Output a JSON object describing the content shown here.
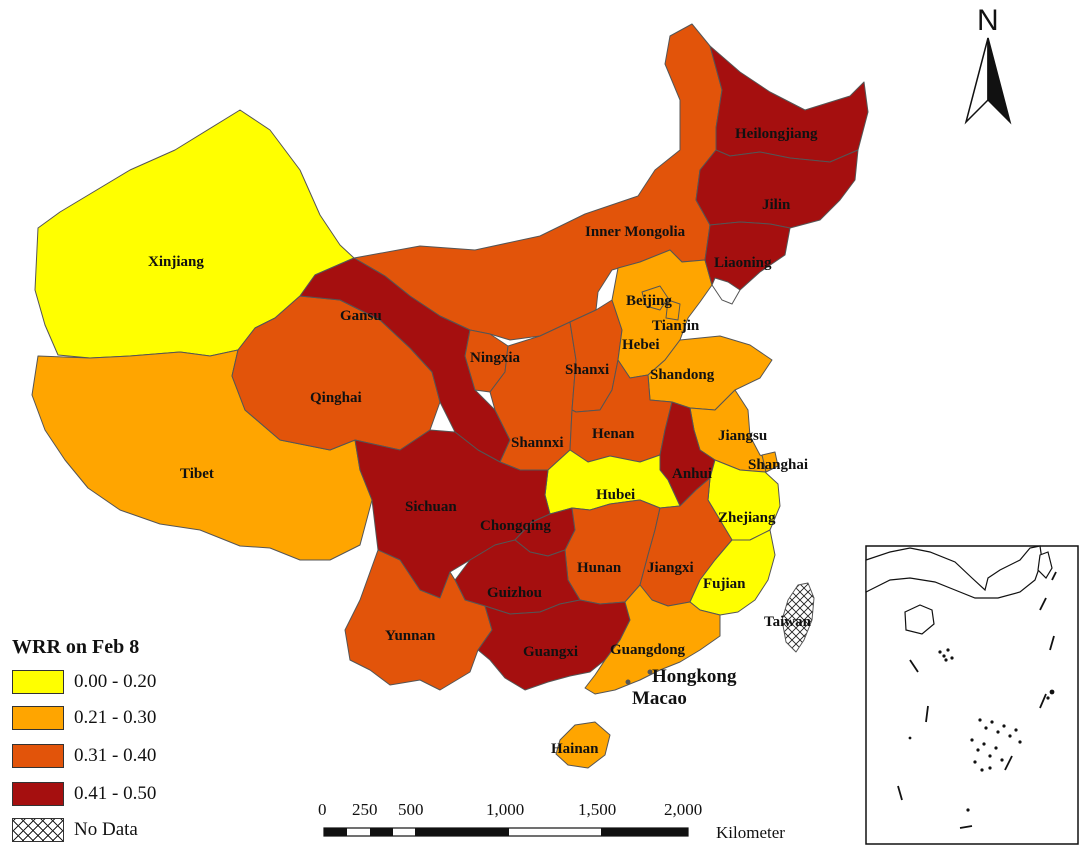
{
  "colors": {
    "c1": "#ffff00",
    "c2": "#ffa500",
    "c3": "#e2540a",
    "c4": "#a50f0f",
    "border": "#555555"
  },
  "provinces": [
    {
      "name": "Xinjiang",
      "class": "0.00 - 0.20"
    },
    {
      "name": "Tibet",
      "class": "0.21 - 0.30"
    },
    {
      "name": "Qinghai",
      "class": "0.31 - 0.40"
    },
    {
      "name": "Gansu",
      "class": "0.41 - 0.50"
    },
    {
      "name": "Inner Mongolia",
      "class": "0.31 - 0.40"
    },
    {
      "name": "Heilongjiang",
      "class": "0.41 - 0.50"
    },
    {
      "name": "Jilin",
      "class": "0.41 - 0.50"
    },
    {
      "name": "Liaoning",
      "class": "0.41 - 0.50"
    },
    {
      "name": "Beijing",
      "class": "0.21 - 0.30"
    },
    {
      "name": "Tianjin",
      "class": "0.21 - 0.30"
    },
    {
      "name": "Hebei",
      "class": "0.21 - 0.30"
    },
    {
      "name": "Shandong",
      "class": "0.21 - 0.30"
    },
    {
      "name": "Ningxia",
      "class": "0.31 - 0.40"
    },
    {
      "name": "Shanxi",
      "class": "0.31 - 0.40"
    },
    {
      "name": "Shannxi",
      "class": "0.31 - 0.40"
    },
    {
      "name": "Henan",
      "class": "0.31 - 0.40"
    },
    {
      "name": "Jiangsu",
      "class": "0.21 - 0.30"
    },
    {
      "name": "Shanghai",
      "class": "0.21 - 0.30"
    },
    {
      "name": "Anhui",
      "class": "0.41 - 0.50"
    },
    {
      "name": "Hubei",
      "class": "0.00 - 0.20"
    },
    {
      "name": "Zhejiang",
      "class": "0.00 - 0.20"
    },
    {
      "name": "Sichuan",
      "class": "0.41 - 0.50"
    },
    {
      "name": "Chongqing",
      "class": "0.41 - 0.50"
    },
    {
      "name": "Hunan",
      "class": "0.31 - 0.40"
    },
    {
      "name": "Jiangxi",
      "class": "0.31 - 0.40"
    },
    {
      "name": "Fujian",
      "class": "0.00 - 0.20"
    },
    {
      "name": "Guizhou",
      "class": "0.41 - 0.50"
    },
    {
      "name": "Yunnan",
      "class": "0.31 - 0.40"
    },
    {
      "name": "Guangxi",
      "class": "0.41 - 0.50"
    },
    {
      "name": "Guangdong",
      "class": "0.21 - 0.30"
    },
    {
      "name": "Hainan",
      "class": "0.21 - 0.30"
    },
    {
      "name": "Taiwan",
      "class": "No Data"
    },
    {
      "name": "Hongkong",
      "class": ""
    },
    {
      "name": "Macao",
      "class": ""
    }
  ],
  "legend": {
    "title": "WRR on Feb 8",
    "items": [
      {
        "label": "0.00 - 0.20",
        "color": "#ffff00"
      },
      {
        "label": "0.21 - 0.30",
        "color": "#ffa500"
      },
      {
        "label": "0.31 - 0.40",
        "color": "#e2540a"
      },
      {
        "label": "0.41 - 0.50",
        "color": "#a50f0f"
      },
      {
        "label": "No Data",
        "pattern": "crosshatch"
      }
    ]
  },
  "scale_bar": {
    "ticks": [
      "0",
      "250",
      "500",
      "1,000",
      "1,500",
      "2,000"
    ],
    "unit": "Kilometer"
  },
  "north_arrow": {
    "label": "N",
    "icon": "north-arrow-icon"
  }
}
